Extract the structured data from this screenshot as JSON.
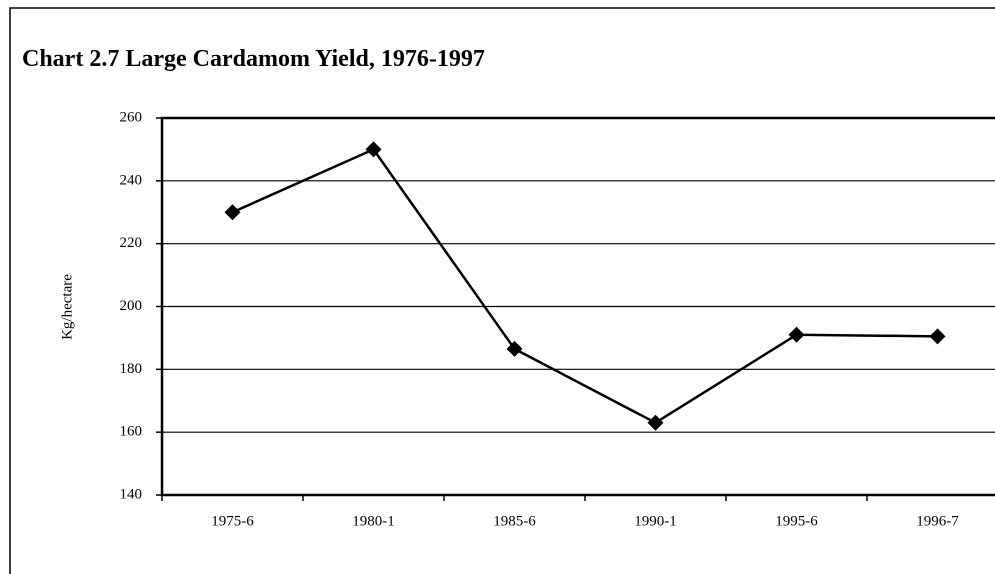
{
  "chart_data": {
    "type": "line",
    "title": "Chart 2.7 Large Cardamom Yield, 1976-1997",
    "y_label": "Kg/hectare",
    "categories": [
      "1975-6",
      "1980-1",
      "1985-6",
      "1990-1",
      "1995-6",
      "1996-7"
    ],
    "values": [
      230,
      250,
      186.5,
      163,
      191,
      190.5
    ],
    "color": "#000000",
    "ylim": [
      140,
      260
    ],
    "yticks": [
      140,
      160,
      180,
      200,
      220,
      240,
      260
    ],
    "grid": true
  }
}
